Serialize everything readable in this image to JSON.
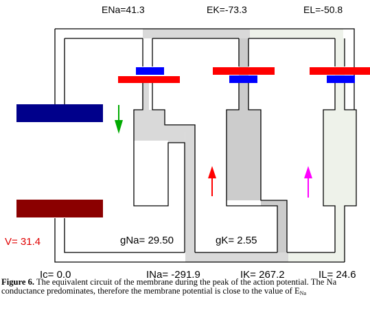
{
  "reversal": {
    "na": "ENa=41.3",
    "k": "EK=-73.3",
    "l": "EL=-50.8"
  },
  "voltage": "V= 31.4",
  "conductance": {
    "na": "gNa= 29.50",
    "k": "gK= 2.55"
  },
  "currents": {
    "c": "Ic= 0.0",
    "na": "INa= -291.9",
    "k": "IK= 267.2",
    "l": "IL= 24.6"
  },
  "caption": {
    "label": "Figure 6.",
    "text": " The equivalent circuit of the membrane during the peak of the action potential. The Na conductance predominates, therefore the membrane potential is close to the value of E",
    "subscript": "Na"
  },
  "colors": {
    "capacitor_top": "#00008b",
    "capacitor_bottom": "#8b0000",
    "battery_long": "#ff0000",
    "battery_short": "#0000ff",
    "na_arrow": "#00aa00",
    "k_arrow": "#ff0000",
    "l_arrow": "#ff00ff",
    "na_fill": "#d9d9d9",
    "k_fill": "#cccccc",
    "l_fill": "#eef2ea"
  },
  "icons": {
    "na_arrow": "arrow-down-icon",
    "k_arrow": "arrow-up-icon",
    "l_arrow": "arrow-up-icon"
  }
}
